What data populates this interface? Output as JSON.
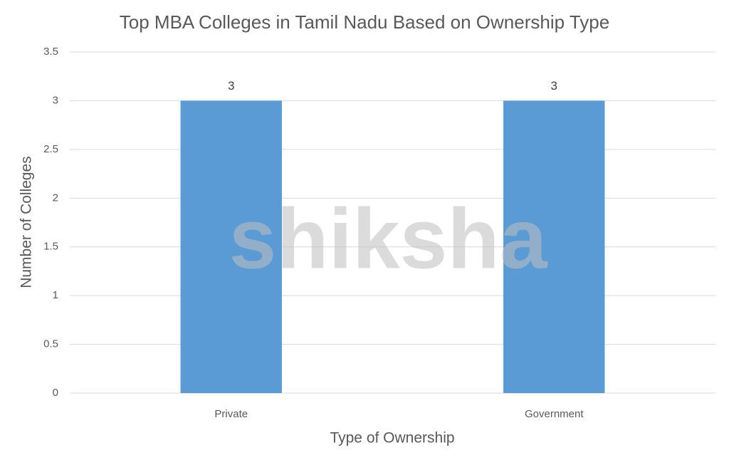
{
  "chart_data": {
    "type": "bar",
    "title": "Top MBA Colleges in Tamil Nadu Based on Ownership Type",
    "x_label": "Type of Ownership",
    "y_label": "Number of Colleges",
    "categories": [
      "Private",
      "Government"
    ],
    "values": [
      3,
      3
    ],
    "color": "#5b9bd5",
    "ylim": [
      0,
      3.5
    ],
    "yticks": [
      0,
      0.5,
      1,
      1.5,
      2,
      2.5,
      3,
      3.5
    ],
    "grid": true,
    "data_labels": true,
    "watermark": "shiksha"
  }
}
